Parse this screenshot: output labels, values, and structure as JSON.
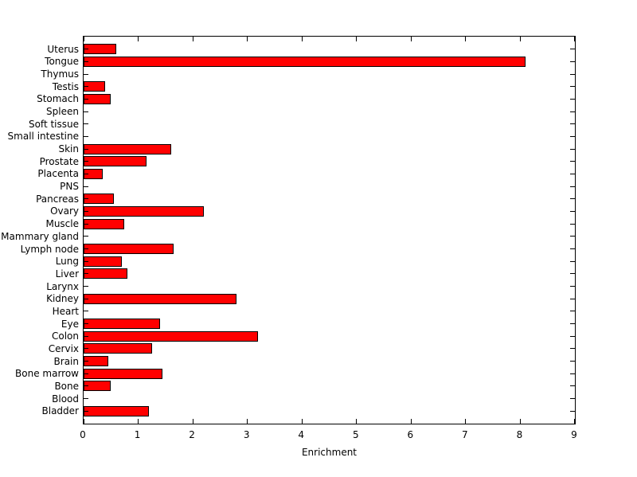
{
  "chart_data": {
    "type": "bar",
    "orientation": "horizontal",
    "title": "",
    "xlabel": "Enrichment",
    "ylabel": "",
    "xlim": [
      0,
      9
    ],
    "x_ticks": [
      0,
      1,
      2,
      3,
      4,
      5,
      6,
      7,
      8,
      9
    ],
    "grid": false,
    "legend": "none",
    "box": true,
    "categories_top_to_bottom": [
      "Uterus",
      "Tongue",
      "Thymus",
      "Testis",
      "Stomach",
      "Spleen",
      "Soft tissue",
      "Small intestine",
      "Skin",
      "Prostate",
      "Placenta",
      "PNS",
      "Pancreas",
      "Ovary",
      "Muscle",
      "Mammary gland",
      "Lymph node",
      "Lung",
      "Liver",
      "Larynx",
      "Kidney",
      "Heart",
      "Eye",
      "Colon",
      "Cervix",
      "Brain",
      "Bone marrow",
      "Bone",
      "Blood",
      "Bladder"
    ],
    "values": [
      0.6,
      8.1,
      0,
      0.4,
      0.5,
      0,
      0,
      0,
      1.6,
      1.15,
      0.35,
      0,
      0.55,
      2.2,
      0.75,
      0,
      1.65,
      0.7,
      0.8,
      0,
      2.8,
      0,
      1.4,
      3.2,
      1.25,
      0.45,
      1.45,
      0.5,
      0,
      1.2
    ],
    "bar_color": "#FF0000",
    "bar_edge_color": "#000000",
    "axis_color": "#000000",
    "background_color": "#FFFFFF"
  }
}
